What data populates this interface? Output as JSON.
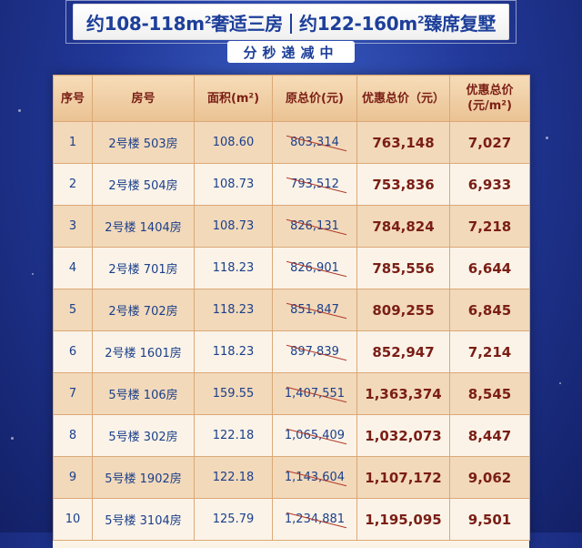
{
  "banner": {
    "part1": "约108-118m",
    "sup1": "2",
    "part2": "奢适三房",
    "part3": "约122-160m",
    "sup2": "2",
    "part4": "臻席复墅"
  },
  "subtitle": "分秒递减中",
  "table": {
    "headers": {
      "index": "序号",
      "room": "房号",
      "area": "面积(m²)",
      "original_total": "原总价(元)",
      "discount_total": "优惠总价（元）",
      "unit_price_line1": "优惠总价",
      "unit_price_line2": "(元/m²)"
    },
    "rows": [
      {
        "index": "1",
        "room": "2号楼 503房",
        "area": "108.60",
        "original_total": "803,314",
        "discount_total": "763,148",
        "unit_price": "7,027"
      },
      {
        "index": "2",
        "room": "2号楼 504房",
        "area": "108.73",
        "original_total": "793,512",
        "discount_total": "753,836",
        "unit_price": "6,933"
      },
      {
        "index": "3",
        "room": "2号楼 1404房",
        "area": "108.73",
        "original_total": "826,131",
        "discount_total": "784,824",
        "unit_price": "7,218"
      },
      {
        "index": "4",
        "room": "2号楼 701房",
        "area": "118.23",
        "original_total": "826,901",
        "discount_total": "785,556",
        "unit_price": "6,644"
      },
      {
        "index": "5",
        "room": "2号楼 702房",
        "area": "118.23",
        "original_total": "851,847",
        "discount_total": "809,255",
        "unit_price": "6,845"
      },
      {
        "index": "6",
        "room": "2号楼 1601房",
        "area": "118.23",
        "original_total": "897,839",
        "discount_total": "852,947",
        "unit_price": "7,214"
      },
      {
        "index": "7",
        "room": "5号楼 106房",
        "area": "159.55",
        "original_total": "1,407,551",
        "discount_total": "1,363,374",
        "unit_price": "8,545"
      },
      {
        "index": "8",
        "room": "5号楼 302房",
        "area": "122.18",
        "original_total": "1,065,409",
        "discount_total": "1,032,073",
        "unit_price": "8,447"
      },
      {
        "index": "9",
        "room": "5号楼 1902房",
        "area": "122.18",
        "original_total": "1,143,604",
        "discount_total": "1,107,172",
        "unit_price": "9,062"
      },
      {
        "index": "10",
        "room": "5号楼 3104房",
        "area": "125.79",
        "original_total": "1,234,881",
        "discount_total": "1,195,095",
        "unit_price": "9,501"
      }
    ]
  }
}
